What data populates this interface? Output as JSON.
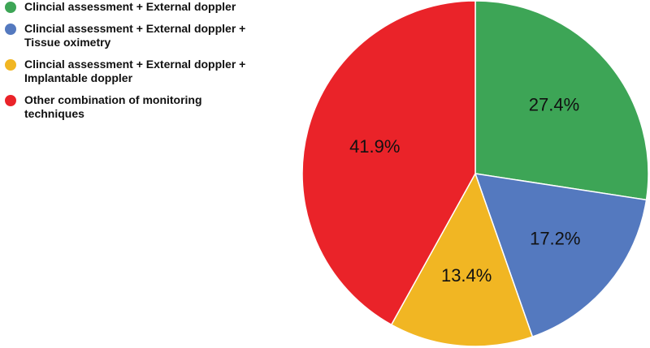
{
  "chart_data": {
    "type": "pie",
    "title": "",
    "legend_position": "top-left",
    "start_angle_deg": 0,
    "direction": "clockwise",
    "slices": [
      {
        "label": "Clincial assessment + External doppler",
        "value": 27.4,
        "value_label": "27.4%",
        "color": "#3da556"
      },
      {
        "label": "Clincial assessment + External doppler +\nTissue oximetry",
        "value": 17.2,
        "value_label": "17.2%",
        "color": "#5479bf"
      },
      {
        "label": "Clincial assessment + External doppler +\nImplantable doppler",
        "value": 13.4,
        "value_label": "13.4%",
        "color": "#f1b623"
      },
      {
        "label": "Other combination of monitoring\ntechniques",
        "value": 41.9,
        "value_label": "41.9%",
        "color": "#ea2329"
      }
    ]
  }
}
